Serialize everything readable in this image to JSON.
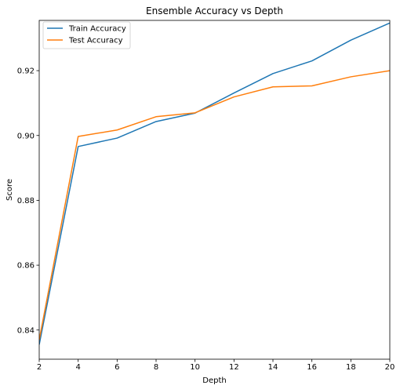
{
  "chart_data": {
    "type": "line",
    "title": "Ensemble Accuracy vs Depth",
    "xlabel": "Depth",
    "ylabel": "Score",
    "xlim": [
      2,
      20
    ],
    "ylim": [
      0.831,
      0.9355
    ],
    "xticks": [
      2,
      4,
      6,
      8,
      10,
      12,
      14,
      16,
      18,
      20
    ],
    "xtick_labels": [
      "2",
      "4",
      "6",
      "8",
      "10",
      "12",
      "14",
      "16",
      "18",
      "20"
    ],
    "yticks": [
      0.84,
      0.86,
      0.88,
      0.9,
      0.92
    ],
    "ytick_labels": [
      "0.84",
      "0.86",
      "0.88",
      "0.90",
      "0.92"
    ],
    "grid": false,
    "legend_position": "top-left",
    "x": [
      2,
      4,
      6,
      8,
      10,
      12,
      14,
      16,
      18,
      20
    ],
    "series": [
      {
        "name": "Train Accuracy",
        "color": "#1f77b4",
        "values": [
          0.8355,
          0.8966,
          0.8992,
          0.9043,
          0.9069,
          0.9131,
          0.9191,
          0.923,
          0.9294,
          0.9347
        ]
      },
      {
        "name": "Test Accuracy",
        "color": "#ff7f0e",
        "values": [
          0.837,
          0.8997,
          0.9017,
          0.9058,
          0.907,
          0.9119,
          0.915,
          0.9153,
          0.9181,
          0.92
        ]
      }
    ]
  }
}
